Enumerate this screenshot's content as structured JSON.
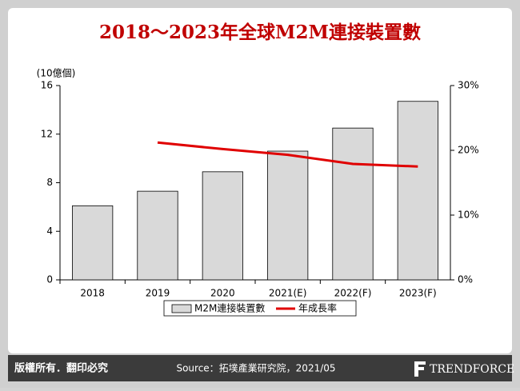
{
  "chart_data": {
    "type": "bar",
    "title": "2018～2023年全球M2M連接裝置數",
    "y_label": "(10億個)",
    "categories": [
      "2018",
      "2019",
      "2020",
      "2021(E)",
      "2022(F)",
      "2023(F)"
    ],
    "series": [
      {
        "name": "M2M連接裝置數",
        "type": "bar",
        "color": "#d9d9d9",
        "values": [
          6.1,
          7.3,
          8.9,
          10.6,
          12.5,
          14.7
        ]
      },
      {
        "name": "年成長率",
        "type": "line",
        "axis": "y2",
        "color": "#e00000",
        "values": [
          null,
          21.2,
          20.2,
          19.3,
          17.9,
          17.5
        ]
      }
    ],
    "ylim": [
      0,
      16
    ],
    "yticks": [
      0,
      4,
      8,
      12,
      16
    ],
    "y2lim": [
      0,
      30
    ],
    "y2ticks": [
      {
        "value": 0,
        "label": "0%"
      },
      {
        "value": 10,
        "label": "10%"
      },
      {
        "value": 20,
        "label": "20%"
      },
      {
        "value": 30,
        "label": "30%"
      }
    ],
    "grid": false,
    "legend": "bottom"
  },
  "footer": {
    "copyright": "版權所有．翻印必究",
    "source": "Source：拓墣產業研究院，2021/05",
    "logo": "TRENDFORCE"
  }
}
